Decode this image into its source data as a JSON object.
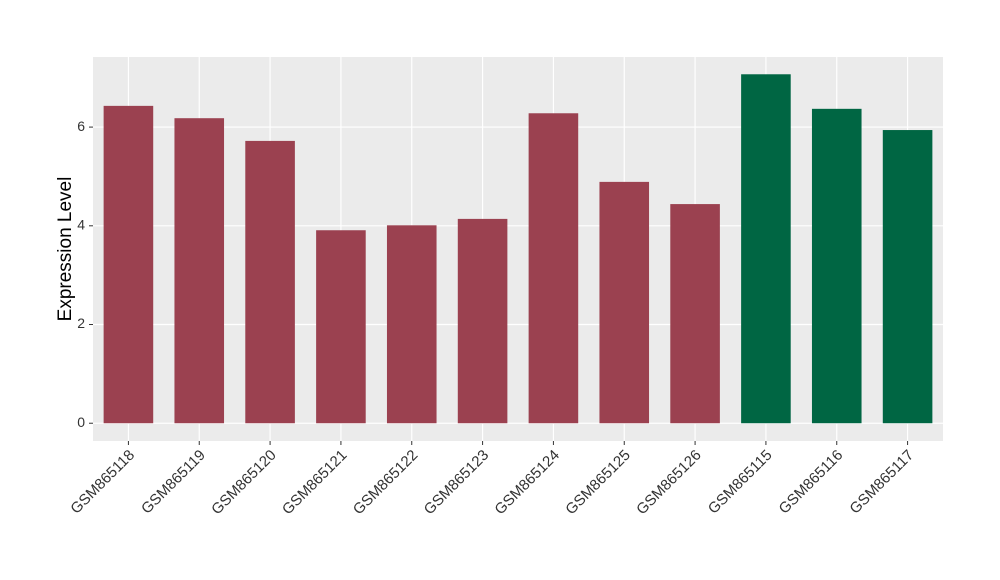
{
  "chart_data": {
    "type": "bar",
    "ylabel": "Expression Level",
    "categories": [
      "GSM865118",
      "GSM865119",
      "GSM865120",
      "GSM865121",
      "GSM865122",
      "GSM865123",
      "GSM865124",
      "GSM865125",
      "GSM865126",
      "GSM865115",
      "GSM865116",
      "GSM865117"
    ],
    "values": [
      6.43,
      6.18,
      5.72,
      3.91,
      4.01,
      4.14,
      6.28,
      4.89,
      4.44,
      7.07,
      6.37,
      5.94
    ],
    "colors": [
      "#9b4150",
      "#9b4150",
      "#9b4150",
      "#9b4150",
      "#9b4150",
      "#9b4150",
      "#9b4150",
      "#9b4150",
      "#9b4150",
      "#006643",
      "#006643",
      "#006643"
    ],
    "ylim": [
      -0.36,
      7.42
    ],
    "yticks": [
      0,
      2,
      4,
      6
    ],
    "grid": true
  }
}
